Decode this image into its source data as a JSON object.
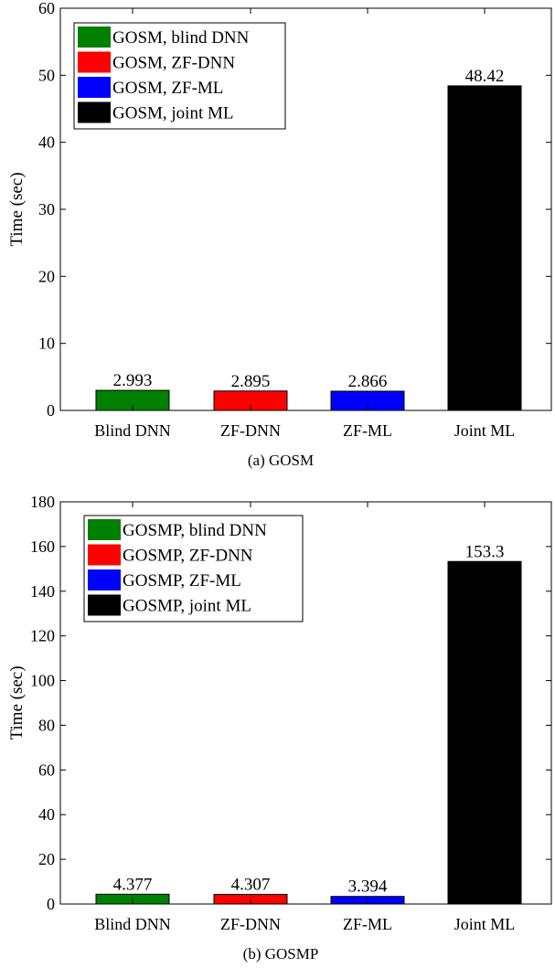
{
  "chart_data": [
    {
      "type": "bar",
      "categories": [
        "Blind DNN",
        "ZF-DNN",
        "ZF-ML",
        "Joint ML"
      ],
      "values": [
        2.993,
        2.895,
        2.866,
        48.42
      ],
      "value_labels": [
        "2.993",
        "2.895",
        "2.866",
        "48.42"
      ],
      "colors": [
        "#008000",
        "#ff0000",
        "#0000ff",
        "#000000"
      ],
      "ylabel": "Time (sec)",
      "ylim": [
        0,
        60
      ],
      "yticks": [
        0,
        10,
        20,
        30,
        40,
        50,
        60
      ],
      "caption": "(a)  GOSM",
      "legend": [
        "GOSM, blind DNN",
        "GOSM, ZF-DNN",
        "GOSM, ZF-ML",
        "GOSM, joint ML"
      ],
      "legend_position": "top-left",
      "grid": false
    },
    {
      "type": "bar",
      "categories": [
        "Blind DNN",
        "ZF-DNN",
        "ZF-ML",
        "Joint ML"
      ],
      "values": [
        4.377,
        4.307,
        3.394,
        153.3
      ],
      "value_labels": [
        "4.377",
        "4.307",
        "3.394",
        "153.3"
      ],
      "colors": [
        "#008000",
        "#ff0000",
        "#0000ff",
        "#000000"
      ],
      "ylabel": "Time (sec)",
      "ylim": [
        0,
        180
      ],
      "yticks": [
        0,
        20,
        40,
        60,
        80,
        100,
        120,
        140,
        160,
        180
      ],
      "caption": "(b)  GOSMP",
      "legend": [
        "GOSMP, blind DNN",
        "GOSMP, ZF-DNN",
        "GOSMP, ZF-ML",
        "GOSMP, joint ML"
      ],
      "legend_position": "top-left",
      "grid": false
    }
  ]
}
